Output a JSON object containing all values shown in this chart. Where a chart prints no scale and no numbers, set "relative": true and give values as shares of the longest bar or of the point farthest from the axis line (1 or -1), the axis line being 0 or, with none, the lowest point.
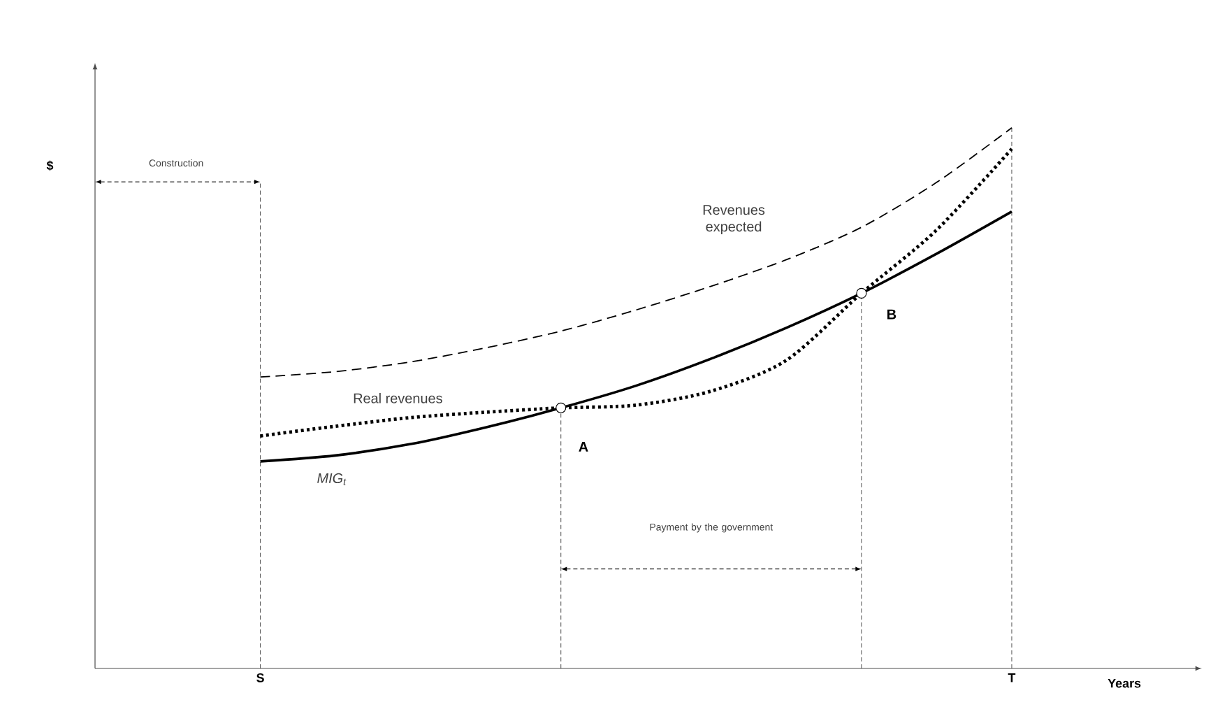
{
  "chart_data": {
    "type": "line",
    "relative": true,
    "xlabel": "Years",
    "categories": [
      "S",
      null,
      null,
      null,
      null,
      null,
      null,
      null,
      null,
      null,
      "T"
    ],
    "series": [
      {
        "name": "Revenues expected",
        "color": "#000000",
        "line_style": "dashed",
        "values": [
          0.539,
          0.549,
          0.567,
          0.593,
          0.624,
          0.663,
          0.707,
          0.756,
          0.816,
          0.899,
          1
        ]
      },
      {
        "name": "Real revenues",
        "color": "#000000",
        "line_style": "dotted",
        "values": [
          0.43,
          0.448,
          0.464,
          0.474,
          0.482,
          0.487,
          0.513,
          0.57,
          0.694,
          0.811,
          0.961
        ]
      },
      {
        "name": "*MIG*$_{t}$",
        "color": "#000000",
        "line_style": "solid",
        "values": [
          0.383,
          0.394,
          0.415,
          0.446,
          0.482,
          0.523,
          0.573,
          0.63,
          0.694,
          0.767,
          0.845
        ]
      },
      {
        "type": "scatter",
        "marker": "circle",
        "color": "#000000",
        "values": [
          null,
          null,
          null,
          null,
          0.482,
          null,
          null,
          null,
          0.694,
          null,
          null
        ]
      }
    ],
    "grid": "x",
    "annotations": [
      "Construction",
      "Payment by the government",
      "A",
      "B",
      "$"
    ]
  }
}
